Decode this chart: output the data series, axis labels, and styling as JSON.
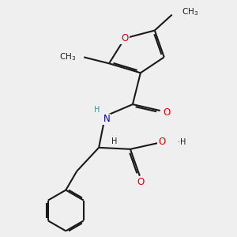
{
  "background_color": "#efefef",
  "bond_color": "#1a1a1a",
  "oxygen_color": "#e00000",
  "nitrogen_color": "#0000cc",
  "teal_color": "#4a9090",
  "line_width": 1.5,
  "font_size_atom": 8.5,
  "font_size_h": 7.0,
  "font_size_ch3": 7.5,
  "figsize": [
    3.0,
    3.0
  ],
  "dpi": 100,
  "xlim": [
    0.0,
    3.0
  ],
  "ylim": [
    0.0,
    3.0
  ]
}
